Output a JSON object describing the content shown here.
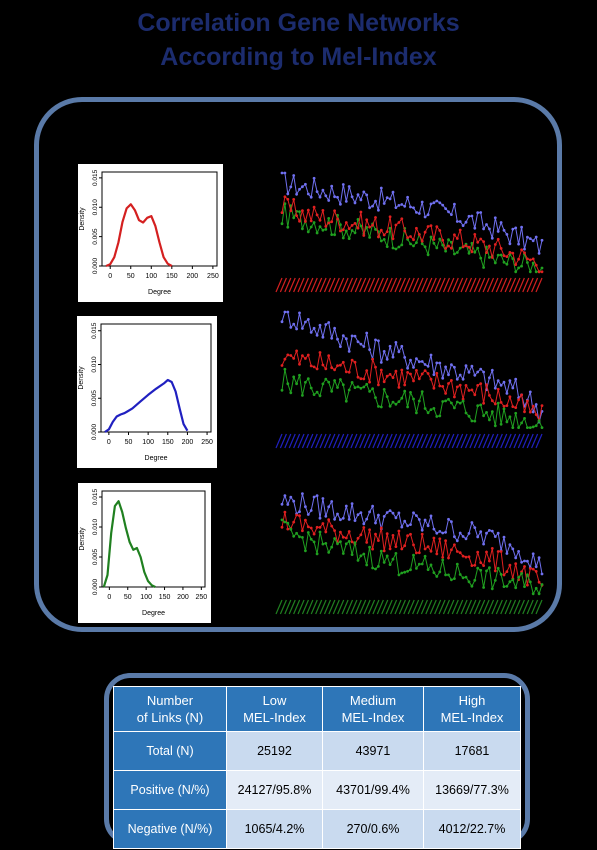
{
  "title": {
    "line1": "Correlation Gene Networks",
    "line2": "According to Mel-Index"
  },
  "colors": {
    "title": "#1c2c6e",
    "panel_border": "#5a7aa8",
    "low": "#d42020",
    "medium": "#2020c0",
    "high": "#208020",
    "table_header": "#2e76b8",
    "table_row_a": "#c9daef",
    "table_row_b": "#e4ecf7"
  },
  "chart_data": [
    {
      "type": "line",
      "group": "Low",
      "color": "#d42020",
      "xlabel": "Degree",
      "ylabel": "Density",
      "xticks": [
        0,
        50,
        100,
        150,
        200,
        250
      ],
      "yticks": [
        0.0,
        0.005,
        0.01,
        0.015
      ],
      "ytick_labels": [
        "0.000",
        "0.005",
        "0.010",
        "0.015"
      ],
      "xlim": [
        -20,
        260
      ],
      "ylim": [
        0,
        0.016
      ],
      "x": [
        -10,
        0,
        10,
        20,
        30,
        40,
        50,
        60,
        70,
        80,
        90,
        100,
        110,
        120,
        130,
        140,
        150
      ],
      "y": [
        0.0,
        0.0003,
        0.0015,
        0.004,
        0.0075,
        0.0098,
        0.0105,
        0.0095,
        0.0078,
        0.0074,
        0.0082,
        0.0085,
        0.0068,
        0.004,
        0.0015,
        0.0004,
        0.0
      ]
    },
    {
      "type": "line",
      "group": "Medium",
      "color": "#2020c0",
      "xlabel": "Degree",
      "ylabel": "Density",
      "xticks": [
        0,
        50,
        100,
        150,
        200,
        250
      ],
      "yticks": [
        0.0,
        0.005,
        0.01,
        0.015
      ],
      "ytick_labels": [
        "0.000",
        "0.005",
        "0.010",
        "0.015"
      ],
      "xlim": [
        -20,
        260
      ],
      "ylim": [
        0,
        0.016
      ],
      "x": [
        -10,
        0,
        10,
        20,
        30,
        40,
        60,
        80,
        100,
        120,
        140,
        150,
        160,
        170,
        180,
        190,
        200
      ],
      "y": [
        0.0,
        0.0004,
        0.0015,
        0.0023,
        0.0026,
        0.0028,
        0.0035,
        0.0045,
        0.0055,
        0.0064,
        0.0072,
        0.0077,
        0.0074,
        0.006,
        0.0035,
        0.0012,
        0.0002
      ]
    },
    {
      "type": "line",
      "group": "High",
      "color": "#208020",
      "xlabel": "Degree",
      "ylabel": "Density",
      "xticks": [
        0,
        50,
        100,
        150,
        200,
        250
      ],
      "yticks": [
        0.0,
        0.005,
        0.01,
        0.015
      ],
      "ytick_labels": [
        "0.000",
        "0.005",
        "0.010",
        "0.015"
      ],
      "xlim": [
        -20,
        260
      ],
      "ylim": [
        0,
        0.016
      ],
      "x": [
        -15,
        -5,
        5,
        15,
        25,
        35,
        45,
        55,
        65,
        75,
        85,
        95,
        105,
        115,
        125
      ],
      "y": [
        0.0,
        0.002,
        0.009,
        0.0135,
        0.0143,
        0.0125,
        0.0098,
        0.0075,
        0.0062,
        0.0065,
        0.005,
        0.0025,
        0.001,
        0.0003,
        0.0
      ]
    },
    {
      "type": "line",
      "group": "Low network",
      "dominant_color": "#d42020",
      "series": [
        {
          "color": "#7070f0",
          "values": [
            0.85,
            0.82,
            0.8,
            0.78,
            0.76,
            0.74,
            0.72,
            0.7,
            0.68,
            0.66,
            0.64,
            0.62,
            0.58,
            0.55,
            0.52,
            0.48,
            0.44,
            0.4,
            0.35,
            0.3,
            0.25
          ]
        },
        {
          "color": "#20a020",
          "values": [
            0.55,
            0.52,
            0.5,
            0.48,
            0.45,
            0.43,
            0.4,
            0.38,
            0.36,
            0.33,
            0.3,
            0.28,
            0.25,
            0.22,
            0.2,
            0.18,
            0.15,
            0.12,
            0.1,
            0.08,
            0.06
          ]
        },
        {
          "color": "#e02020",
          "values": [
            0.62,
            0.58,
            0.55,
            0.53,
            0.51,
            0.49,
            0.47,
            0.45,
            0.43,
            0.41,
            0.39,
            0.37,
            0.35,
            0.33,
            0.31,
            0.28,
            0.25,
            0.22,
            0.18,
            0.14,
            0.1
          ]
        }
      ]
    },
    {
      "type": "line",
      "group": "Medium network",
      "dominant_color": "#2020c0",
      "series": [
        {
          "color": "#7070f0",
          "values": [
            1.0,
            0.95,
            0.9,
            0.86,
            0.82,
            0.78,
            0.74,
            0.7,
            0.67,
            0.64,
            0.61,
            0.58,
            0.55,
            0.52,
            0.49,
            0.46,
            0.42,
            0.38,
            0.33,
            0.26,
            0.15
          ]
        },
        {
          "color": "#e02020",
          "values": [
            0.62,
            0.6,
            0.58,
            0.56,
            0.55,
            0.53,
            0.52,
            0.5,
            0.48,
            0.46,
            0.44,
            0.42,
            0.4,
            0.38,
            0.36,
            0.33,
            0.3,
            0.26,
            0.22,
            0.16,
            0.1
          ]
        },
        {
          "color": "#20a020",
          "values": [
            0.42,
            0.4,
            0.38,
            0.36,
            0.34,
            0.33,
            0.31,
            0.29,
            0.28,
            0.26,
            0.25,
            0.23,
            0.21,
            0.2,
            0.18,
            0.16,
            0.14,
            0.12,
            0.1,
            0.08,
            0.05
          ]
        }
      ]
    },
    {
      "type": "line",
      "group": "High network",
      "dominant_color": "#208020",
      "series": [
        {
          "color": "#7070f0",
          "values": [
            0.88,
            0.86,
            0.84,
            0.82,
            0.8,
            0.78,
            0.76,
            0.74,
            0.72,
            0.7,
            0.68,
            0.66,
            0.64,
            0.62,
            0.6,
            0.57,
            0.54,
            0.5,
            0.45,
            0.38,
            0.25
          ]
        },
        {
          "color": "#e02020",
          "values": [
            0.7,
            0.67,
            0.64,
            0.62,
            0.6,
            0.58,
            0.56,
            0.54,
            0.52,
            0.5,
            0.48,
            0.46,
            0.44,
            0.42,
            0.4,
            0.37,
            0.34,
            0.3,
            0.25,
            0.18,
            0.1
          ]
        },
        {
          "color": "#20a020",
          "values": [
            0.6,
            0.56,
            0.52,
            0.48,
            0.45,
            0.42,
            0.39,
            0.36,
            0.33,
            0.3,
            0.28,
            0.26,
            0.24,
            0.22,
            0.2,
            0.18,
            0.16,
            0.14,
            0.12,
            0.1,
            0.08
          ]
        }
      ]
    }
  ],
  "table": {
    "header": [
      "Number\nof Links (N)",
      "Low\nMEL-Index",
      "Medium\nMEL-Index",
      "High\nMEL-Index"
    ],
    "rows": [
      {
        "label": "Total (N)",
        "values": [
          "25192",
          "43971",
          "17681"
        ]
      },
      {
        "label": "Positive (N/%)",
        "values": [
          "24127/95.8%",
          "43701/99.4%",
          "13669/77.3%"
        ]
      },
      {
        "label": "Negative (N/%)",
        "values": [
          "1065/4.2%",
          "270/0.6%",
          "4012/22.7%"
        ]
      }
    ]
  }
}
